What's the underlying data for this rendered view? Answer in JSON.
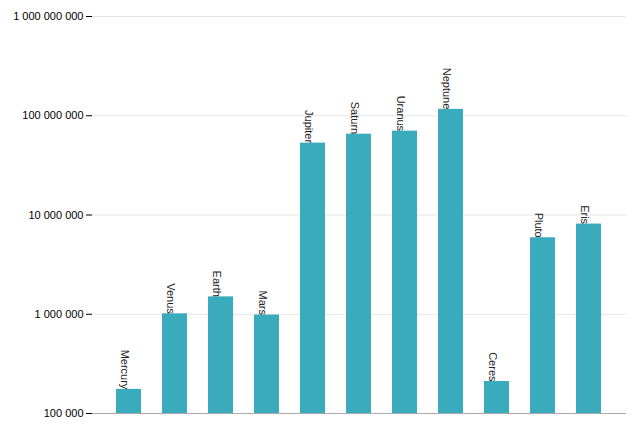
{
  "chart_data": {
    "type": "bar",
    "categories": [
      "Mercury",
      "Venus",
      "Earth",
      "Mars",
      "Jupiter",
      "Saturn",
      "Uranus",
      "Neptune",
      "Ceres",
      "Pluto",
      "Eris"
    ],
    "values": [
      175000,
      1010000,
      1496000,
      982000,
      53000000,
      65200000,
      70000000,
      116000000,
      210000,
      5900000,
      8100000
    ],
    "color": "#3aabbc",
    "log": "y",
    "ylim": [
      100000,
      1000000000
    ],
    "yticks": [
      {
        "value": 100000,
        "label": "100 000"
      },
      {
        "value": 1000000,
        "label": "1 000 000"
      },
      {
        "value": 10000000,
        "label": "10 000 000"
      },
      {
        "value": 100000000,
        "label": "100 000 000"
      },
      {
        "value": 1000000000,
        "label": "1 000 000 000"
      }
    ],
    "grid": true,
    "tick_labels": "y"
  }
}
